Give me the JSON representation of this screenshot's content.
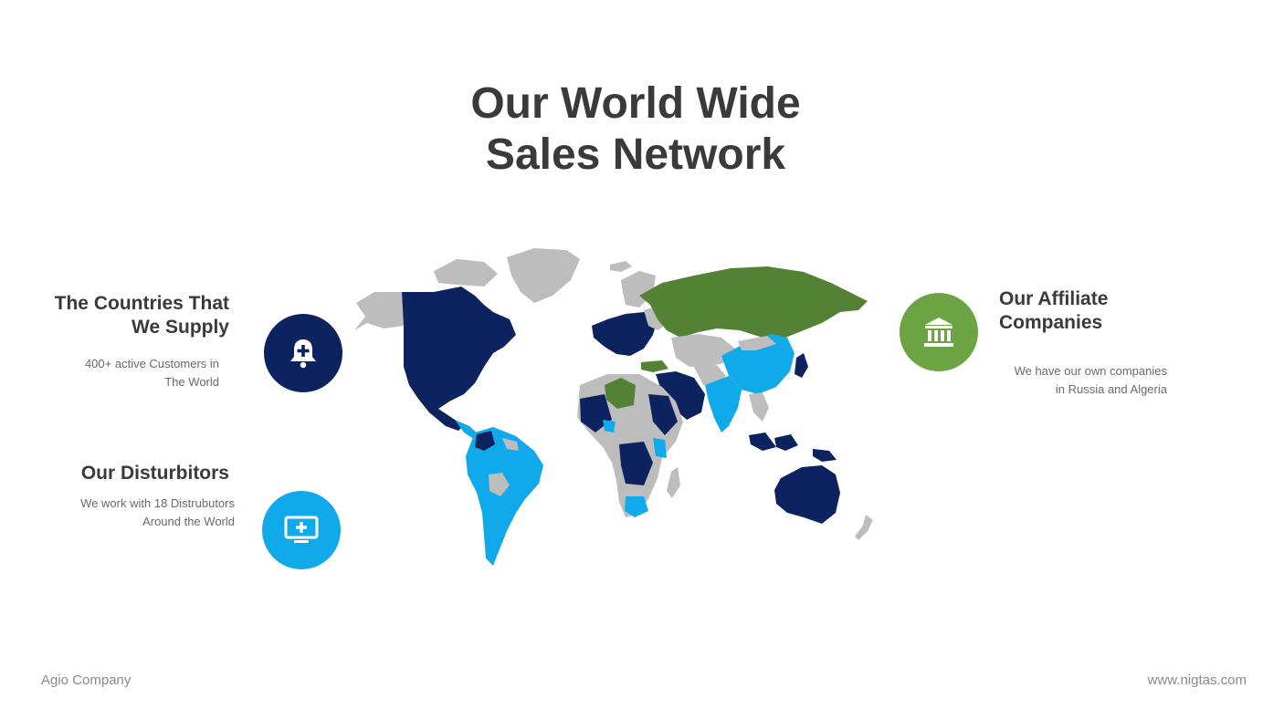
{
  "title": {
    "line1": "Our World Wide",
    "line2": "Sales Network"
  },
  "supply": {
    "title_line1": "The Countries That",
    "title_line2": "We Supply",
    "text_line1": "400+ active Customers in",
    "text_line2": "The World",
    "icon": "bell-plus-icon",
    "color": "#0d2360"
  },
  "distributors": {
    "title": "Our Disturbitors",
    "text_line1": "We work with 18 Distrubutors",
    "text_line2": "Around the World",
    "icon": "monitor-plus-icon",
    "color": "#10a9e9"
  },
  "affiliates": {
    "title_line1": "Our Affiliate",
    "title_line2": "Companies",
    "text_line1": "We have our own companies",
    "text_line2": "in Russia and Algeria",
    "icon": "bank-building-icon",
    "color": "#6ca443"
  },
  "map_colors": {
    "other": "#bdbdbd",
    "supply": "#0d2360",
    "distributor": "#10a9e9",
    "affiliate": "#548235"
  },
  "footer": {
    "left": "Agio Company",
    "right": "www.nigtas.com"
  }
}
